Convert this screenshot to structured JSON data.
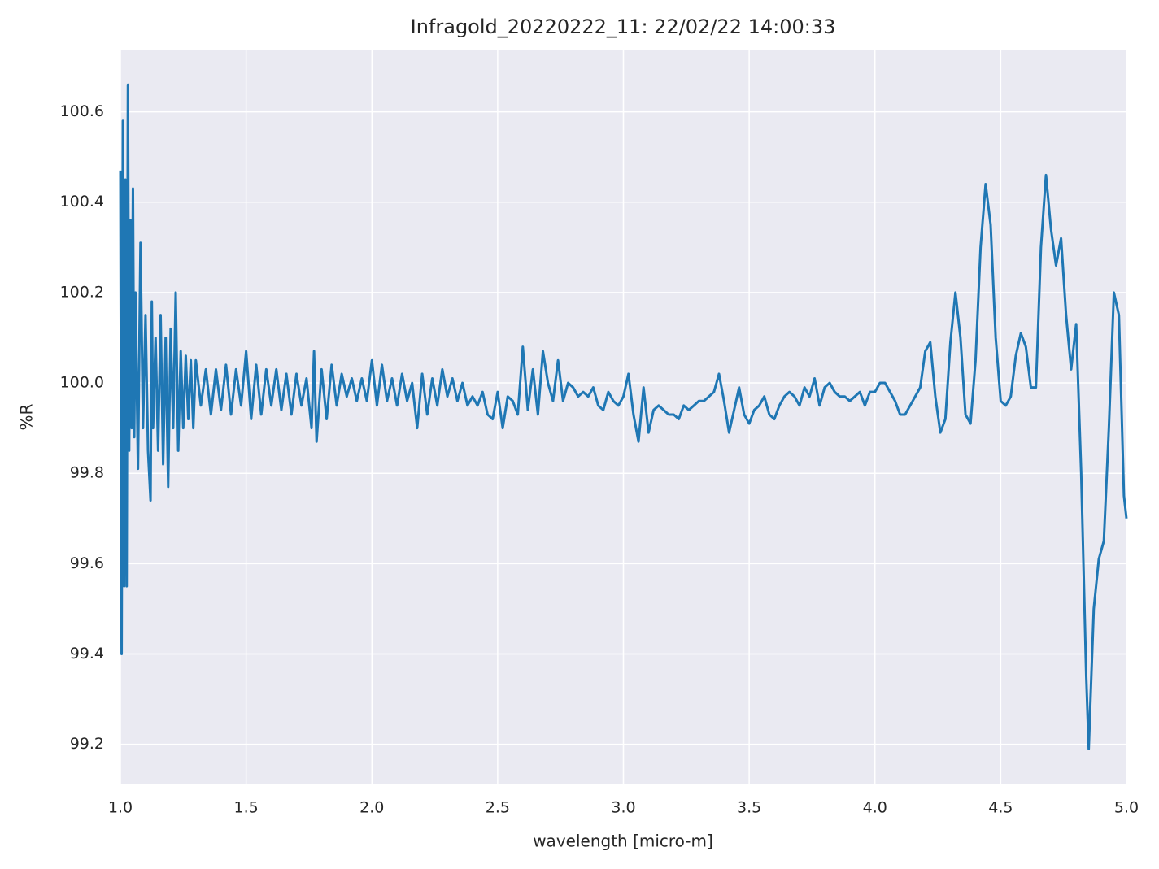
{
  "chart_data": {
    "type": "line",
    "title": "Infragold_20220222_11:  22/02/22 14:00:33",
    "x_label": "wavelength [micro-m]",
    "y_label": "%R",
    "color": "#1f77b4",
    "grid": true,
    "xlim": [
      1.0,
      5.0
    ],
    "ylim": [
      99.113,
      100.736
    ],
    "xticks": [
      {
        "value": 1,
        "label": "1.0"
      },
      1.5,
      {
        "value": 2,
        "label": "2.0"
      },
      2.5,
      {
        "value": 3,
        "label": "3.0"
      },
      3.5,
      {
        "value": 4,
        "label": "4.0"
      },
      4.5,
      {
        "value": 5,
        "label": "5.0"
      }
    ],
    "yticks": [
      99.2,
      99.4,
      99.6,
      99.8,
      {
        "value": 100,
        "label": "100.0"
      },
      100.2,
      100.4,
      100.6
    ],
    "x": [
      1.0,
      1.005,
      1.01,
      1.015,
      1.02,
      1.025,
      1.03,
      1.035,
      1.04,
      1.045,
      1.05,
      1.055,
      1.06,
      1.07,
      1.08,
      1.09,
      1.1,
      1.11,
      1.12,
      1.125,
      1.13,
      1.14,
      1.15,
      1.16,
      1.17,
      1.18,
      1.19,
      1.2,
      1.21,
      1.22,
      1.23,
      1.24,
      1.25,
      1.26,
      1.27,
      1.28,
      1.29,
      1.3,
      1.32,
      1.34,
      1.36,
      1.38,
      1.4,
      1.42,
      1.44,
      1.46,
      1.48,
      1.5,
      1.52,
      1.54,
      1.56,
      1.58,
      1.6,
      1.62,
      1.64,
      1.66,
      1.68,
      1.7,
      1.72,
      1.74,
      1.76,
      1.77,
      1.78,
      1.8,
      1.82,
      1.84,
      1.86,
      1.88,
      1.9,
      1.92,
      1.94,
      1.96,
      1.98,
      2.0,
      2.02,
      2.04,
      2.06,
      2.08,
      2.1,
      2.12,
      2.14,
      2.16,
      2.18,
      2.2,
      2.22,
      2.24,
      2.26,
      2.28,
      2.3,
      2.32,
      2.34,
      2.36,
      2.38,
      2.4,
      2.42,
      2.44,
      2.46,
      2.48,
      2.5,
      2.52,
      2.54,
      2.56,
      2.58,
      2.6,
      2.62,
      2.64,
      2.66,
      2.68,
      2.7,
      2.72,
      2.74,
      2.76,
      2.78,
      2.8,
      2.82,
      2.84,
      2.86,
      2.88,
      2.9,
      2.92,
      2.94,
      2.96,
      2.98,
      3.0,
      3.02,
      3.04,
      3.06,
      3.08,
      3.1,
      3.12,
      3.14,
      3.16,
      3.18,
      3.2,
      3.22,
      3.24,
      3.26,
      3.28,
      3.3,
      3.32,
      3.34,
      3.36,
      3.38,
      3.4,
      3.42,
      3.44,
      3.46,
      3.48,
      3.5,
      3.52,
      3.54,
      3.56,
      3.58,
      3.6,
      3.62,
      3.64,
      3.66,
      3.68,
      3.7,
      3.72,
      3.74,
      3.76,
      3.78,
      3.8,
      3.82,
      3.84,
      3.86,
      3.88,
      3.9,
      3.92,
      3.94,
      3.96,
      3.98,
      4.0,
      4.02,
      4.04,
      4.06,
      4.08,
      4.1,
      4.12,
      4.14,
      4.16,
      4.18,
      4.2,
      4.22,
      4.24,
      4.26,
      4.28,
      4.3,
      4.32,
      4.34,
      4.36,
      4.38,
      4.4,
      4.42,
      4.44,
      4.46,
      4.48,
      4.5,
      4.52,
      4.54,
      4.56,
      4.58,
      4.6,
      4.62,
      4.64,
      4.66,
      4.68,
      4.7,
      4.72,
      4.74,
      4.76,
      4.78,
      4.8,
      4.82,
      4.84,
      4.85,
      4.87,
      4.89,
      4.91,
      4.93,
      4.95,
      4.97,
      4.99,
      5.0
    ],
    "values": [
      100.47,
      99.4,
      100.58,
      99.55,
      100.45,
      99.55,
      100.66,
      99.85,
      100.36,
      99.9,
      100.43,
      99.88,
      100.2,
      99.81,
      100.31,
      99.9,
      100.15,
      99.85,
      99.74,
      100.18,
      99.9,
      100.1,
      99.85,
      100.15,
      99.82,
      100.1,
      99.77,
      100.12,
      99.9,
      100.2,
      99.85,
      100.07,
      99.9,
      100.06,
      99.92,
      100.05,
      99.9,
      100.05,
      99.95,
      100.03,
      99.93,
      100.03,
      99.94,
      100.04,
      99.93,
      100.03,
      99.95,
      100.07,
      99.92,
      100.04,
      99.93,
      100.03,
      99.95,
      100.03,
      99.94,
      100.02,
      99.93,
      100.02,
      99.95,
      100.01,
      99.9,
      100.07,
      99.87,
      100.03,
      99.92,
      100.04,
      99.95,
      100.02,
      99.97,
      100.01,
      99.96,
      100.01,
      99.96,
      100.05,
      99.95,
      100.04,
      99.96,
      100.01,
      99.95,
      100.02,
      99.96,
      100.0,
      99.9,
      100.02,
      99.93,
      100.01,
      99.95,
      100.03,
      99.97,
      100.01,
      99.96,
      100.0,
      99.95,
      99.97,
      99.95,
      99.98,
      99.93,
      99.92,
      99.98,
      99.9,
      99.97,
      99.96,
      99.93,
      100.08,
      99.94,
      100.03,
      99.93,
      100.07,
      100.0,
      99.96,
      100.05,
      99.96,
      100.0,
      99.99,
      99.97,
      99.98,
      99.97,
      99.99,
      99.95,
      99.94,
      99.98,
      99.96,
      99.95,
      99.97,
      100.02,
      99.93,
      99.87,
      99.99,
      99.89,
      99.94,
      99.95,
      99.94,
      99.93,
      99.93,
      99.92,
      99.95,
      99.94,
      99.95,
      99.96,
      99.96,
      99.97,
      99.98,
      100.02,
      99.96,
      99.89,
      99.94,
      99.99,
      99.93,
      99.91,
      99.94,
      99.95,
      99.97,
      99.93,
      99.92,
      99.95,
      99.97,
      99.98,
      99.97,
      99.95,
      99.99,
      99.97,
      100.01,
      99.95,
      99.99,
      100.0,
      99.98,
      99.97,
      99.97,
      99.96,
      99.97,
      99.98,
      99.95,
      99.98,
      99.98,
      100.0,
      100.0,
      99.98,
      99.96,
      99.93,
      99.93,
      99.95,
      99.97,
      99.99,
      100.07,
      100.09,
      99.97,
      99.89,
      99.92,
      100.09,
      100.2,
      100.1,
      99.93,
      99.91,
      100.05,
      100.3,
      100.44,
      100.35,
      100.1,
      99.96,
      99.95,
      99.97,
      100.06,
      100.11,
      100.08,
      99.99,
      99.99,
      100.3,
      100.46,
      100.34,
      100.26,
      100.32,
      100.15,
      100.03,
      100.13,
      99.8,
      99.35,
      99.19,
      99.5,
      99.61,
      99.65,
      99.9,
      100.2,
      100.15,
      99.75,
      99.7
    ]
  }
}
